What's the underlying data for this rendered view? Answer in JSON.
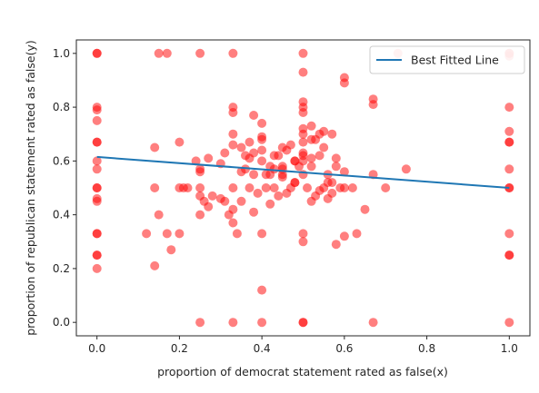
{
  "chart_data": {
    "type": "scatter",
    "title": "",
    "xlabel": "proportion of democrat statement rated as false(x)",
    "ylabel": "proportion of republican statement rated as false(y)",
    "xlim": [
      -0.05,
      1.05
    ],
    "ylim": [
      -0.05,
      1.05
    ],
    "xticks": [
      0.0,
      0.2,
      0.4,
      0.6,
      0.8,
      1.0
    ],
    "yticks": [
      0.0,
      0.2,
      0.4,
      0.6,
      0.8,
      1.0
    ],
    "xtick_labels": [
      "0.0",
      "0.2",
      "0.4",
      "0.6",
      "0.8",
      "1.0"
    ],
    "ytick_labels": [
      "0.0",
      "0.2",
      "0.4",
      "0.6",
      "0.8",
      "1.0"
    ],
    "grid": false,
    "legend_position": "top-right",
    "point_color": "#ff0000",
    "line_color": "#1f77b4",
    "series": [
      {
        "type": "scatter",
        "x": [
          0,
          0,
          0,
          0,
          0,
          0,
          0,
          0,
          0,
          0,
          0,
          0,
          0,
          0,
          0,
          0,
          0,
          0,
          1,
          1,
          1,
          1,
          1,
          1,
          1,
          1,
          1,
          1,
          1,
          1,
          1,
          0.14,
          0.15,
          0.17,
          0.25,
          0.33,
          0.5,
          0.5,
          0.73,
          1.0,
          0.25,
          0.33,
          0.4,
          0.5,
          0.5,
          0.67,
          0.12,
          0.14,
          0.15,
          0.17,
          0.18,
          0.2,
          0.2,
          0.21,
          0.22,
          0.24,
          0.25,
          0.25,
          0.25,
          0.26,
          0.27,
          0.28,
          0.3,
          0.31,
          0.32,
          0.33,
          0.33,
          0.33,
          0.34,
          0.35,
          0.36,
          0.37,
          0.38,
          0.39,
          0.4,
          0.4,
          0.41,
          0.42,
          0.43,
          0.44,
          0.45,
          0.46,
          0.47,
          0.48,
          0.49,
          0.5,
          0.5,
          0.51,
          0.52,
          0.53,
          0.54,
          0.55,
          0.56,
          0.57,
          0.58,
          0.6,
          0.6,
          0.62,
          0.63,
          0.67,
          0.7,
          0.33,
          0.36,
          0.38,
          0.4,
          0.42,
          0.44,
          0.46,
          0.48,
          0.5,
          0.5,
          0.52,
          0.54,
          0.56,
          0.58,
          0.6,
          0.33,
          0.35,
          0.37,
          0.38,
          0.4,
          0.41,
          0.43,
          0.45,
          0.47,
          0.48,
          0.5,
          0.5,
          0.52,
          0.55,
          0.57,
          0.58,
          0.14,
          0.2,
          0.25,
          0.3,
          0.33,
          0.38,
          0.4,
          0.42,
          0.45,
          0.48,
          0.5,
          0.5,
          0.52,
          0.55,
          0.6,
          0.67,
          0.25,
          0.27,
          0.31,
          0.33,
          0.35,
          0.37,
          0.4,
          0.43,
          0.45,
          0.5,
          0.5,
          0.53,
          0.57,
          0.6,
          0.67,
          0.4,
          0.45,
          0.5,
          0.5,
          0.52,
          0.54,
          0.56,
          0.59,
          0.65,
          0.75
        ],
        "y": [
          1,
          1,
          0.8,
          0.79,
          0.75,
          0.67,
          0.67,
          0.6,
          0.57,
          0.5,
          0.5,
          0.46,
          0.45,
          0.33,
          0.33,
          0.25,
          0.25,
          0.2,
          1,
          1,
          0.8,
          0.71,
          0.67,
          0.67,
          0.57,
          0.5,
          0.5,
          0.33,
          0.25,
          0.25,
          0,
          0.21,
          1,
          1,
          1,
          1,
          1,
          0.93,
          1,
          0.99,
          0,
          0,
          0,
          0,
          0,
          0,
          0.33,
          0.5,
          0.4,
          0.33,
          0.27,
          0.33,
          0.5,
          0.5,
          0.5,
          0.6,
          0.4,
          0.47,
          0.5,
          0.45,
          0.43,
          0.47,
          0.46,
          0.45,
          0.4,
          0.37,
          0.42,
          0.5,
          0.33,
          0.45,
          0.62,
          0.5,
          0.41,
          0.48,
          0.12,
          0.33,
          0.5,
          0.44,
          0.5,
          0.47,
          0.55,
          0.48,
          0.5,
          0.52,
          0.58,
          0.33,
          0.3,
          0.5,
          0.45,
          0.47,
          0.49,
          0.5,
          0.46,
          0.48,
          0.29,
          0.5,
          0.32,
          0.5,
          0.33,
          0.55,
          0.5,
          0.66,
          0.57,
          0.63,
          0.6,
          0.58,
          0.62,
          0.64,
          0.6,
          0.55,
          0.62,
          0.61,
          0.62,
          0.55,
          0.58,
          0.56,
          0.7,
          0.65,
          0.67,
          0.55,
          0.69,
          0.55,
          0.62,
          0.65,
          0.66,
          0.6,
          0.7,
          0.63,
          0.68,
          0.65,
          0.7,
          0.61,
          0.65,
          0.67,
          0.56,
          0.59,
          0.8,
          0.77,
          0.74,
          0.55,
          0.54,
          0.52,
          0.8,
          0.67,
          0.73,
          0.71,
          0.89,
          0.83,
          0.57,
          0.61,
          0.63,
          0.78,
          0.56,
          0.61,
          0.64,
          0.57,
          0.58,
          0.72,
          0.82,
          0.68,
          0.52,
          0.91,
          0.81,
          0.68,
          0.57,
          0.78,
          0.6,
          0.58,
          0.7,
          0.52,
          0.5,
          0.42,
          0.57
        ]
      },
      {
        "type": "line",
        "name": "Best Fitted Line",
        "x": [
          0,
          1
        ],
        "y": [
          0.615,
          0.5
        ]
      }
    ]
  }
}
